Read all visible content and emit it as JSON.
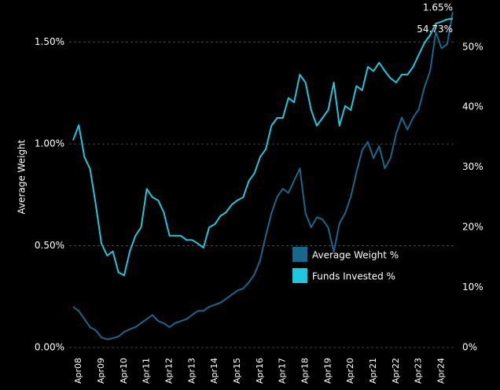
{
  "chart_data": {
    "type": "line",
    "y_label": "Average Weight",
    "categories": [
      null,
      "Apr08",
      null,
      null,
      null,
      "Apr09",
      null,
      null,
      null,
      "Apr10",
      null,
      null,
      null,
      "Apr11",
      null,
      null,
      null,
      "Apr12",
      null,
      null,
      null,
      "Apr13",
      null,
      null,
      null,
      "Apr14",
      null,
      null,
      null,
      "Apr15",
      null,
      null,
      null,
      "Apr16",
      null,
      null,
      null,
      "Apr17",
      null,
      null,
      null,
      "Apr18",
      null,
      null,
      null,
      "Apr19",
      null,
      null,
      null,
      "Apr20",
      null,
      null,
      null,
      "Apr21",
      null,
      null,
      null,
      "Apr22",
      null,
      null,
      null,
      "Apr23",
      null,
      null,
      null,
      "Apr24",
      null,
      null
    ],
    "series": [
      {
        "name": "Average Weight %",
        "color": "#17688a",
        "axis": "y",
        "values": [
          0.2,
          0.18,
          0.14,
          0.1,
          0.085,
          0.05,
          0.04,
          0.046,
          0.054,
          0.077,
          0.09,
          0.1,
          0.12,
          0.14,
          0.16,
          0.13,
          0.12,
          0.1,
          0.12,
          0.13,
          0.14,
          0.16,
          0.18,
          0.18,
          0.2,
          0.21,
          0.22,
          0.24,
          0.26,
          0.28,
          0.29,
          0.32,
          0.36,
          0.43,
          0.55,
          0.66,
          0.74,
          0.78,
          0.76,
          0.82,
          0.88,
          0.66,
          0.59,
          0.64,
          0.63,
          0.59,
          0.47,
          0.61,
          0.66,
          0.74,
          0.86,
          0.97,
          1.01,
          0.93,
          0.99,
          0.88,
          0.93,
          1.05,
          1.13,
          1.07,
          1.13,
          1.17,
          1.28,
          1.36,
          1.55,
          1.47,
          1.49,
          1.65
        ],
        "value_labels": [
          null,
          null,
          null,
          null,
          null,
          null,
          null,
          null,
          null,
          null,
          null,
          null,
          null,
          null,
          null,
          null,
          null,
          null,
          null,
          null,
          null,
          null,
          null,
          null,
          null,
          null,
          null,
          null,
          null,
          null,
          null,
          null,
          null,
          null,
          null,
          null,
          null,
          null,
          null,
          null,
          null,
          null,
          null,
          null,
          null,
          null,
          null,
          null,
          null,
          null,
          null,
          null,
          null,
          null,
          null,
          null,
          null,
          null,
          null,
          null,
          null,
          null,
          null,
          null,
          null,
          null,
          null,
          "1.65%"
        ]
      },
      {
        "name": "Funds Invested %",
        "color": "#1ec8dc",
        "axis": "y2",
        "values": [
          34.5,
          37,
          31.7,
          29.7,
          23.8,
          17.3,
          15.3,
          16,
          12.5,
          12,
          16,
          18.6,
          20,
          26.4,
          25,
          24.5,
          22.5,
          18.6,
          18.6,
          18.6,
          17.9,
          17.9,
          17.3,
          16.6,
          20,
          20.5,
          21.9,
          22.5,
          23.8,
          24.5,
          25,
          27.7,
          29,
          31.7,
          33,
          36.9,
          38.2,
          38.2,
          41.5,
          40.8,
          45.4,
          44.1,
          39.5,
          36.9,
          38.2,
          39.5,
          44.1,
          36.9,
          40.2,
          39.5,
          43.5,
          42.8,
          46.7,
          46,
          47.4,
          46,
          44.8,
          44.1,
          45.4,
          45.4,
          46.7,
          48.7,
          50.7,
          52,
          53.9,
          54.2,
          54.6,
          54.73
        ],
        "value_labels": [
          null,
          null,
          null,
          null,
          null,
          null,
          null,
          null,
          null,
          null,
          null,
          null,
          null,
          null,
          null,
          null,
          null,
          null,
          null,
          null,
          null,
          null,
          null,
          null,
          null,
          null,
          null,
          null,
          null,
          null,
          null,
          null,
          null,
          null,
          null,
          null,
          null,
          null,
          null,
          null,
          null,
          null,
          null,
          null,
          null,
          null,
          null,
          null,
          null,
          null,
          null,
          null,
          null,
          null,
          null,
          null,
          null,
          null,
          null,
          null,
          null,
          null,
          null,
          null,
          null,
          null,
          null,
          "54.73%"
        ]
      }
    ],
    "ylim": [
      0,
      1.63
    ],
    "yticks": [
      {
        "value": 0,
        "label": "0.00%"
      },
      {
        "value": 0.5,
        "label": "0.50%"
      },
      {
        "value": 1.0,
        "label": "1.00%"
      },
      {
        "value": 1.5,
        "label": "1.50%"
      }
    ],
    "y2lim": [
      0,
      55.2
    ],
    "y2ticks": [
      {
        "value": 0,
        "label": "0%"
      },
      {
        "value": 10,
        "label": "10%"
      },
      {
        "value": 20,
        "label": "20%"
      },
      {
        "value": 30,
        "label": "30%"
      },
      {
        "value": 40,
        "label": "40%"
      },
      {
        "value": 50,
        "label": "50%"
      }
    ],
    "grid": true,
    "legend": "center right"
  }
}
